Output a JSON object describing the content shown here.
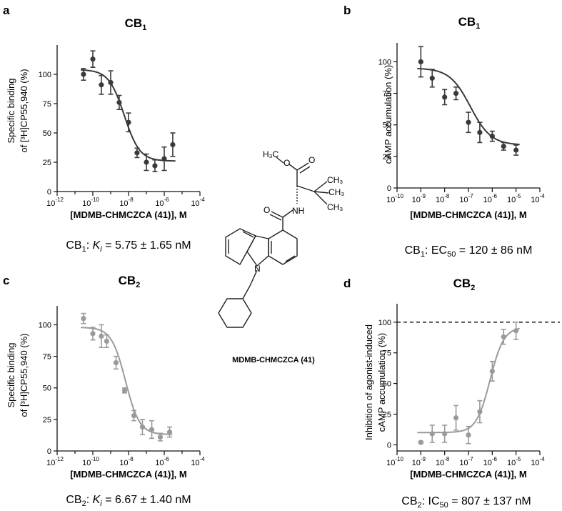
{
  "panels": [
    {
      "letter": "a",
      "title_main": "CB",
      "title_sub": "1",
      "ylabel_lines": [
        "Specific binding",
        "of [³H]CP55,940 (%)"
      ],
      "xlabel": "[MDMB-CHMCZCA (41)], M",
      "result": {
        "pre": "CB",
        "sub": "1",
        "mid": ": ",
        "italic": "K",
        "italic_sub": "i",
        "post": " = 5.75 ± 1.65 nM"
      }
    },
    {
      "letter": "b",
      "title_main": "CB",
      "title_sub": "1",
      "ylabel_lines": [
        "cAMP accumulation (%)"
      ],
      "xlabel": "[MDMB-CHMCZCA (41)], M",
      "result": {
        "pre": "CB",
        "sub": "1",
        "mid": ": EC",
        "italic": "",
        "italic_sub": "50",
        "post": " = 120 ± 86 nM"
      }
    },
    {
      "letter": "c",
      "title_main": "CB",
      "title_sub": "2",
      "ylabel_lines": [
        "Specific binding",
        "of [³H]CP55,940 (%)"
      ],
      "xlabel": "[MDMB-CHMCZCA (41)], M",
      "result": {
        "pre": "CB",
        "sub": "2",
        "mid": ": ",
        "italic": "K",
        "italic_sub": "i",
        "post": " = 6.67 ± 1.40 nM"
      }
    },
    {
      "letter": "d",
      "title_main": "CB",
      "title_sub": "2",
      "ylabel_lines": [
        "Inhibition of agonist-induced",
        "cAMP accumulation (%)"
      ],
      "xlabel": "[MDMB-CHMCZCA (41)], M",
      "result": {
        "pre": "CB",
        "sub": "2",
        "mid": ": IC",
        "italic": "",
        "italic_sub": "50",
        "post": " = 807 ± 137 nM"
      }
    }
  ],
  "molecule": {
    "name": "MDMB-CHMCZCA (41)",
    "atom_labels": [
      "H₃C",
      "O",
      "O",
      "CH₃",
      "CH₃",
      "CH₃",
      "NH",
      "O",
      "N"
    ]
  },
  "chart_data": [
    {
      "type": "scatter",
      "title": "CB1",
      "xlabel": "[MDMB-CHMCZCA (41)], M",
      "ylabel": "Specific binding of [3H]CP55,940 (%)",
      "x_scale": "log",
      "xlim_exp": [
        -12,
        -4
      ],
      "xticks_exp": [
        -12,
        -10,
        -8,
        -6,
        -4
      ],
      "ylim": [
        0,
        125
      ],
      "yticks": [
        0,
        25,
        50,
        75,
        100
      ],
      "color": "#3a3a3a",
      "points": [
        {
          "x": 3e-11,
          "y": 100,
          "err": 5
        },
        {
          "x": 1e-10,
          "y": 113,
          "err": 7
        },
        {
          "x": 3e-10,
          "y": 91,
          "err": 8
        },
        {
          "x": 1e-09,
          "y": 93,
          "err": 10
        },
        {
          "x": 3e-09,
          "y": 76,
          "err": 6
        },
        {
          "x": 1e-08,
          "y": 59,
          "err": 8
        },
        {
          "x": 3e-08,
          "y": 33,
          "err": 4
        },
        {
          "x": 1e-07,
          "y": 25,
          "err": 7
        },
        {
          "x": 3e-07,
          "y": 22,
          "err": 5
        },
        {
          "x": 1e-06,
          "y": 28,
          "err": 10
        },
        {
          "x": 3e-06,
          "y": 40,
          "err": 10
        }
      ],
      "fit": {
        "top": 104,
        "bottom": 26,
        "logEC50": -8.24,
        "hill": 1.0
      },
      "dashed_line_y": null
    },
    {
      "type": "scatter",
      "title": "CB1",
      "xlabel": "[MDMB-CHMCZCA (41)], M",
      "ylabel": "cAMP accumulation (%)",
      "x_scale": "log",
      "xlim_exp": [
        -10,
        -4
      ],
      "xticks_exp": [
        -10,
        -9,
        -8,
        -7,
        -6,
        -5,
        -4
      ],
      "ylim": [
        0,
        115
      ],
      "yticks": [
        0,
        25,
        50,
        75,
        100
      ],
      "color": "#3a3a3a",
      "points": [
        {
          "x": 1e-09,
          "y": 100,
          "err": 12
        },
        {
          "x": 3e-09,
          "y": 87,
          "err": 7
        },
        {
          "x": 1e-08,
          "y": 72,
          "err": 6
        },
        {
          "x": 3e-08,
          "y": 75,
          "err": 5
        },
        {
          "x": 1e-07,
          "y": 52,
          "err": 8
        },
        {
          "x": 3e-07,
          "y": 44,
          "err": 8
        },
        {
          "x": 1e-06,
          "y": 41,
          "err": 4
        },
        {
          "x": 3e-06,
          "y": 33,
          "err": 3
        },
        {
          "x": 1e-05,
          "y": 30,
          "err": 4
        }
      ],
      "fit": {
        "top": 95,
        "bottom": 34,
        "logEC50": -6.92,
        "hill": 1.0
      },
      "dashed_line_y": null
    },
    {
      "type": "scatter",
      "title": "CB2",
      "xlabel": "[MDMB-CHMCZCA (41)], M",
      "ylabel": "Specific binding of [3H]CP55,940 (%)",
      "x_scale": "log",
      "xlim_exp": [
        -12,
        -4
      ],
      "xticks_exp": [
        -12,
        -10,
        -8,
        -6,
        -4
      ],
      "ylim": [
        0,
        115
      ],
      "yticks": [
        0,
        25,
        50,
        75,
        100
      ],
      "color": "#9a9a9a",
      "points": [
        {
          "x": 3e-11,
          "y": 105,
          "err": 4
        },
        {
          "x": 1e-10,
          "y": 93,
          "err": 5
        },
        {
          "x": 3e-10,
          "y": 91,
          "err": 9
        },
        {
          "x": 6e-10,
          "y": 87,
          "err": 5
        },
        {
          "x": 2e-09,
          "y": 70,
          "err": 5
        },
        {
          "x": 6e-09,
          "y": 48,
          "err": 2
        },
        {
          "x": 2e-08,
          "y": 28,
          "err": 4
        },
        {
          "x": 6e-08,
          "y": 19,
          "err": 6
        },
        {
          "x": 2e-07,
          "y": 17,
          "err": 7
        },
        {
          "x": 6e-07,
          "y": 11,
          "err": 3
        },
        {
          "x": 2e-06,
          "y": 15,
          "err": 4
        }
      ],
      "fit": {
        "top": 98,
        "bottom": 13,
        "logEC50": -8.17,
        "hill": 1.1
      },
      "dashed_line_y": null
    },
    {
      "type": "scatter",
      "title": "CB2",
      "xlabel": "[MDMB-CHMCZCA (41)], M",
      "ylabel": "Inhibition of agonist-induced cAMP accumulation (%)",
      "x_scale": "log",
      "xlim_exp": [
        -10,
        -4
      ],
      "xticks_exp": [
        -10,
        -9,
        -8,
        -7,
        -6,
        -5,
        -4
      ],
      "ylim": [
        -5,
        115
      ],
      "yticks": [
        0,
        25,
        50,
        75,
        100
      ],
      "color": "#9a9a9a",
      "points": [
        {
          "x": 1e-09,
          "y": 2,
          "err": 1
        },
        {
          "x": 3e-09,
          "y": 9,
          "err": 7
        },
        {
          "x": 1e-08,
          "y": 9,
          "err": 7
        },
        {
          "x": 3e-08,
          "y": 22,
          "err": 10
        },
        {
          "x": 1e-07,
          "y": 8,
          "err": 7
        },
        {
          "x": 3e-07,
          "y": 27,
          "err": 9
        },
        {
          "x": 1e-06,
          "y": 60,
          "err": 8
        },
        {
          "x": 3e-06,
          "y": 88,
          "err": 6
        },
        {
          "x": 1e-05,
          "y": 93,
          "err": 7
        }
      ],
      "fit": {
        "top": 96,
        "bottom": 10,
        "logEC50": -6.09,
        "hill": 1.5
      },
      "dashed_line_y": 100
    }
  ]
}
